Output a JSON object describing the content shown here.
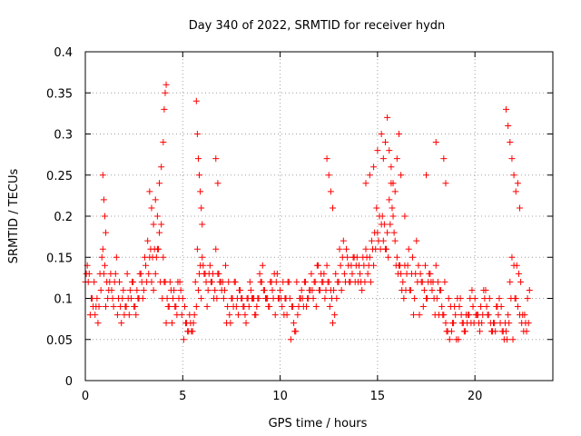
{
  "chart_data": {
    "type": "scatter",
    "title": "Day 340 of 2022, SRMTID for receiver hydn",
    "xlabel": "GPS time / hours",
    "ylabel": "SRMTID / TECUs",
    "xlim": [
      0,
      24
    ],
    "ylim": [
      0,
      0.4
    ],
    "xticks": [
      0,
      5,
      10,
      15,
      20
    ],
    "xtick_labels": [
      "0",
      "5",
      "10",
      "15",
      "20"
    ],
    "yticks": [
      0,
      0.05,
      0.1,
      0.15,
      0.2,
      0.25,
      0.3,
      0.35,
      0.4
    ],
    "ytick_labels": [
      "0",
      "0.05",
      "0.1",
      "0.15",
      "0.2",
      "0.25",
      "0.3",
      "0.35",
      "0.4"
    ],
    "grid": true,
    "marker": "+",
    "color": "#ff0000",
    "series": [
      {
        "name": "SRMTID",
        "x": [
          0.0,
          0.1,
          0.2,
          0.3,
          0.4,
          0.5,
          0.6,
          0.7,
          0.8,
          0.9,
          1.0,
          1.1,
          1.2,
          1.3,
          1.4,
          1.5,
          1.6,
          1.7,
          1.8,
          1.9,
          2.0,
          2.1,
          2.2,
          2.3,
          2.4,
          2.5,
          2.6,
          2.7,
          2.8,
          2.9,
          3.0,
          3.1,
          3.2,
          3.3,
          3.4,
          3.5,
          3.6,
          3.7,
          3.8,
          3.9,
          4.0,
          4.1,
          4.2,
          4.3,
          4.4,
          4.5,
          4.6,
          4.7,
          4.8,
          4.9,
          5.0,
          5.1,
          5.2,
          5.3,
          5.4,
          5.5,
          5.6,
          5.7,
          5.8,
          5.9,
          6.0,
          6.1,
          6.2,
          6.3,
          6.4,
          6.5,
          6.6,
          6.7,
          6.8,
          6.9,
          7.0,
          7.1,
          7.2,
          7.3,
          7.4,
          7.5,
          7.6,
          7.7,
          7.8,
          7.9,
          8.0,
          8.1,
          8.2,
          8.3,
          8.4,
          8.5,
          8.6,
          8.7,
          8.8,
          8.9,
          9.0,
          9.1,
          9.2,
          9.3,
          9.4,
          9.5,
          9.6,
          9.7,
          9.8,
          9.9,
          10.0,
          10.1,
          10.2,
          10.3,
          10.4,
          10.5,
          10.6,
          10.7,
          10.8,
          10.9,
          11.0,
          11.1,
          11.2,
          11.3,
          11.4,
          11.5,
          11.6,
          11.7,
          11.8,
          11.9,
          12.0,
          12.1,
          12.2,
          12.3,
          12.4,
          12.5,
          12.6,
          12.7,
          12.8,
          12.9,
          13.0,
          13.1,
          13.2,
          13.3,
          13.4,
          13.5,
          13.6,
          13.7,
          13.8,
          13.9,
          14.0,
          14.1,
          14.2,
          14.3,
          14.4,
          14.5,
          14.6,
          14.7,
          14.8,
          14.9,
          15.0,
          15.1,
          15.2,
          15.3,
          15.4,
          15.5,
          15.6,
          15.7,
          15.8,
          15.9,
          16.0,
          16.1,
          16.2,
          16.3,
          16.4,
          16.5,
          16.6,
          16.7,
          16.8,
          16.9,
          17.0,
          17.1,
          17.2,
          17.3,
          17.4,
          17.5,
          17.6,
          17.7,
          17.8,
          17.9,
          18.0,
          18.1,
          18.2,
          18.3,
          18.4,
          18.5,
          18.6,
          18.7,
          18.8,
          18.9,
          19.0,
          19.1,
          19.2,
          19.3,
          19.4,
          19.5,
          19.6,
          19.7,
          19.8,
          19.9,
          20.0,
          20.1,
          20.2,
          20.3,
          20.4,
          20.5,
          20.6,
          20.7,
          20.8,
          20.9,
          21.0,
          21.1,
          21.2,
          21.3,
          21.4,
          21.5,
          21.6,
          21.7,
          21.8,
          21.9,
          22.0,
          22.1,
          22.2,
          22.3,
          22.4,
          22.5,
          22.6,
          22.7,
          22.8,
          0.05,
          0.15,
          0.25,
          0.35,
          0.45,
          0.55,
          0.65,
          0.75,
          0.85,
          0.95,
          1.05,
          1.15,
          1.25,
          1.35,
          1.45,
          1.55,
          1.65,
          1.75,
          1.85,
          1.95,
          2.05,
          2.15,
          2.25,
          2.35,
          2.45,
          2.55,
          2.65,
          2.75,
          2.85,
          2.95,
          3.05,
          3.15,
          3.25,
          3.35,
          3.45,
          3.55,
          3.65,
          3.75,
          3.85,
          3.95,
          4.05,
          4.15,
          4.25,
          4.35,
          4.45,
          4.55,
          4.65,
          4.75,
          4.85,
          4.95,
          5.05,
          5.15,
          5.25,
          5.35,
          5.45,
          5.55,
          5.65,
          5.75,
          5.85,
          5.95,
          6.05,
          6.15,
          6.25,
          6.35,
          6.45,
          6.55,
          6.65,
          6.75,
          6.85,
          6.95,
          7.05,
          7.15,
          7.25,
          7.35,
          7.45,
          7.55,
          7.65,
          7.75,
          7.85,
          7.95,
          8.05,
          8.15,
          8.25,
          8.35,
          8.45,
          8.55,
          8.65,
          8.75,
          8.85,
          8.95,
          9.05,
          9.15,
          9.25,
          9.35,
          9.45,
          9.55,
          9.65,
          9.75,
          9.85,
          9.95,
          10.05,
          10.15,
          10.25,
          10.35,
          10.45,
          10.55,
          10.65,
          10.75,
          10.85,
          10.95,
          11.05,
          11.15,
          11.25,
          11.35,
          11.45,
          11.55,
          11.65,
          11.75,
          11.85,
          11.95,
          12.05,
          12.15,
          12.25,
          12.35,
          12.45,
          12.55,
          12.65,
          12.75,
          12.85,
          12.95,
          13.05,
          13.15,
          13.25,
          13.35,
          13.45,
          13.55,
          13.65,
          13.75,
          13.85,
          13.95,
          14.05,
          14.15,
          14.25,
          14.35,
          14.45,
          14.55,
          14.65,
          14.75,
          14.85,
          14.95,
          15.05,
          15.15,
          15.25,
          15.35,
          15.45,
          15.55,
          15.65,
          15.75,
          15.85,
          15.95,
          16.05,
          16.15,
          16.25,
          16.35,
          16.45,
          16.55,
          16.65,
          16.75,
          16.85,
          16.95,
          17.05,
          17.15,
          17.25,
          17.35,
          17.45,
          17.55,
          17.65,
          17.75,
          17.85,
          17.95,
          18.05,
          18.15,
          18.25,
          18.35,
          18.45,
          18.55,
          18.65,
          18.75,
          18.85,
          18.95,
          19.05,
          19.15,
          19.25,
          19.35,
          19.45,
          19.55,
          19.65,
          19.75,
          19.85,
          19.95,
          20.05,
          20.15,
          20.25,
          20.35,
          20.45,
          20.55,
          20.65,
          20.75,
          20.85,
          20.95,
          21.05,
          21.15,
          21.25,
          21.35,
          21.45,
          21.55,
          21.65,
          21.75,
          21.85,
          21.95,
          22.05,
          22.15,
          22.25,
          22.35,
          22.45,
          22.55,
          22.65,
          22.75,
          0.9,
          0.95,
          1.0,
          1.05,
          3.3,
          3.4,
          3.5,
          3.6,
          3.7,
          3.8,
          3.9,
          4.0,
          4.05,
          4.1,
          4.15,
          5.7,
          5.75,
          5.8,
          5.85,
          5.9,
          5.95,
          6.0,
          6.7,
          6.8,
          12.4,
          12.5,
          12.6,
          12.7,
          14.4,
          14.6,
          14.8,
          15.0,
          15.2,
          15.3,
          15.4,
          15.5,
          15.6,
          15.7,
          15.8,
          15.9,
          16.0,
          16.1,
          16.2,
          16.4,
          17.5,
          18.0,
          18.4,
          18.5,
          21.6,
          21.7,
          21.8,
          21.9,
          22.0,
          22.1,
          22.2,
          22.3
        ],
        "y": [
          0.12,
          0.14,
          0.13,
          0.1,
          0.09,
          0.08,
          0.1,
          0.09,
          0.11,
          0.16,
          0.14,
          0.12,
          0.11,
          0.13,
          0.1,
          0.12,
          0.15,
          0.1,
          0.09,
          0.1,
          0.08,
          0.09,
          0.1,
          0.11,
          0.12,
          0.09,
          0.08,
          0.1,
          0.13,
          0.12,
          0.11,
          0.14,
          0.17,
          0.15,
          0.12,
          0.11,
          0.13,
          0.16,
          0.18,
          0.19,
          0.15,
          0.12,
          0.1,
          0.09,
          0.11,
          0.1,
          0.09,
          0.08,
          0.1,
          0.11,
          0.1,
          0.09,
          0.07,
          0.06,
          0.07,
          0.06,
          0.08,
          0.09,
          0.11,
          0.14,
          0.15,
          0.13,
          0.12,
          0.11,
          0.14,
          0.12,
          0.1,
          0.16,
          0.13,
          0.12,
          0.11,
          0.1,
          0.14,
          0.09,
          0.08,
          0.1,
          0.09,
          0.12,
          0.1,
          0.11,
          0.1,
          0.09,
          0.08,
          0.1,
          0.09,
          0.11,
          0.1,
          0.08,
          0.09,
          0.1,
          0.12,
          0.14,
          0.11,
          0.1,
          0.09,
          0.12,
          0.11,
          0.13,
          0.12,
          0.1,
          0.11,
          0.09,
          0.08,
          0.1,
          0.12,
          0.1,
          0.09,
          0.07,
          0.06,
          0.08,
          0.1,
          0.11,
          0.09,
          0.12,
          0.1,
          0.11,
          0.13,
          0.1,
          0.12,
          0.14,
          0.11,
          0.13,
          0.12,
          0.1,
          0.14,
          0.12,
          0.11,
          0.07,
          0.08,
          0.1,
          0.12,
          0.14,
          0.15,
          0.13,
          0.16,
          0.14,
          0.12,
          0.13,
          0.15,
          0.14,
          0.12,
          0.13,
          0.11,
          0.14,
          0.16,
          0.13,
          0.15,
          0.17,
          0.14,
          0.16,
          0.18,
          0.2,
          0.19,
          0.17,
          0.16,
          0.18,
          0.22,
          0.24,
          0.2,
          0.17,
          0.15,
          0.14,
          0.13,
          0.12,
          0.14,
          0.13,
          0.16,
          0.11,
          0.15,
          0.1,
          0.17,
          0.14,
          0.13,
          0.12,
          0.11,
          0.1,
          0.12,
          0.13,
          0.11,
          0.1,
          0.14,
          0.12,
          0.11,
          0.09,
          0.08,
          0.07,
          0.06,
          0.05,
          0.06,
          0.07,
          0.08,
          0.1,
          0.09,
          0.08,
          0.07,
          0.06,
          0.07,
          0.08,
          0.07,
          0.09,
          0.1,
          0.08,
          0.07,
          0.09,
          0.08,
          0.1,
          0.09,
          0.08,
          0.07,
          0.06,
          0.07,
          0.09,
          0.08,
          0.07,
          0.06,
          0.05,
          0.06,
          0.08,
          0.12,
          0.15,
          0.14,
          0.1,
          0.09,
          0.08,
          0.07,
          0.06,
          0.07,
          0.1,
          0.11,
          0.13,
          0.12,
          0.08,
          0.1,
          0.12,
          0.09,
          0.07,
          0.13,
          0.15,
          0.13,
          0.09,
          0.1,
          0.12,
          0.11,
          0.09,
          0.13,
          0.08,
          0.12,
          0.07,
          0.11,
          0.09,
          0.13,
          0.08,
          0.1,
          0.12,
          0.09,
          0.11,
          0.1,
          0.13,
          0.1,
          0.15,
          0.12,
          0.13,
          0.16,
          0.15,
          0.16,
          0.15,
          0.16,
          0.12,
          0.1,
          0.12,
          0.07,
          0.09,
          0.12,
          0.07,
          0.11,
          0.09,
          0.12,
          0.12,
          0.08,
          0.05,
          0.07,
          0.06,
          0.08,
          0.06,
          0.07,
          0.12,
          0.16,
          0.13,
          0.1,
          0.14,
          0.13,
          0.09,
          0.13,
          0.12,
          0.13,
          0.11,
          0.1,
          0.13,
          0.12,
          0.12,
          0.11,
          0.07,
          0.12,
          0.07,
          0.1,
          0.12,
          0.09,
          0.08,
          0.11,
          0.1,
          0.09,
          0.07,
          0.1,
          0.12,
          0.1,
          0.1,
          0.08,
          0.1,
          0.13,
          0.12,
          0.11,
          0.1,
          0.1,
          0.09,
          0.12,
          0.1,
          0.08,
          0.13,
          0.1,
          0.1,
          0.12,
          0.1,
          0.08,
          0.12,
          0.05,
          0.09,
          0.06,
          0.12,
          0.09,
          0.1,
          0.1,
          0.12,
          0.09,
          0.1,
          0.11,
          0.11,
          0.12,
          0.09,
          0.14,
          0.11,
          0.12,
          0.13,
          0.11,
          0.12,
          0.09,
          0.1,
          0.11,
          0.13,
          0.12,
          0.16,
          0.11,
          0.17,
          0.12,
          0.15,
          0.12,
          0.14,
          0.15,
          0.12,
          0.15,
          0.14,
          0.12,
          0.15,
          0.12,
          0.15,
          0.14,
          0.12,
          0.16,
          0.18,
          0.21,
          0.17,
          0.16,
          0.2,
          0.19,
          0.16,
          0.15,
          0.19,
          0.21,
          0.18,
          0.14,
          0.13,
          0.14,
          0.11,
          0.1,
          0.11,
          0.14,
          0.11,
          0.13,
          0.08,
          0.13,
          0.12,
          0.08,
          0.12,
          0.09,
          0.14,
          0.1,
          0.13,
          0.12,
          0.12,
          0.08,
          0.1,
          0.08,
          0.11,
          0.08,
          0.12,
          0.06,
          0.1,
          0.09,
          0.07,
          0.09,
          0.05,
          0.05,
          0.1,
          0.07,
          0.06,
          0.08,
          0.08,
          0.1,
          0.11,
          0.07,
          0.08,
          0.08,
          0.06,
          0.07,
          0.11,
          0.11,
          0.08,
          0.1,
          0.06,
          0.07,
          0.06,
          0.09,
          0.1,
          0.09,
          0.06,
          0.07,
          0.05,
          0.07,
          0.1,
          0.05,
          0.1,
          0.14,
          0.13,
          0.12,
          0.08,
          0.08,
          0.06,
          0.07,
          0.25,
          0.22,
          0.2,
          0.18,
          0.23,
          0.21,
          0.19,
          0.22,
          0.2,
          0.24,
          0.26,
          0.29,
          0.33,
          0.35,
          0.36,
          0.34,
          0.3,
          0.27,
          0.25,
          0.23,
          0.21,
          0.19,
          0.27,
          0.24,
          0.27,
          0.25,
          0.23,
          0.21,
          0.24,
          0.25,
          0.26,
          0.28,
          0.3,
          0.27,
          0.29,
          0.32,
          0.28,
          0.26,
          0.24,
          0.23,
          0.27,
          0.3,
          0.25,
          0.2,
          0.25,
          0.29,
          0.27,
          0.24,
          0.33,
          0.31,
          0.29,
          0.27,
          0.25,
          0.23,
          0.24,
          0.21
        ]
      }
    ]
  }
}
